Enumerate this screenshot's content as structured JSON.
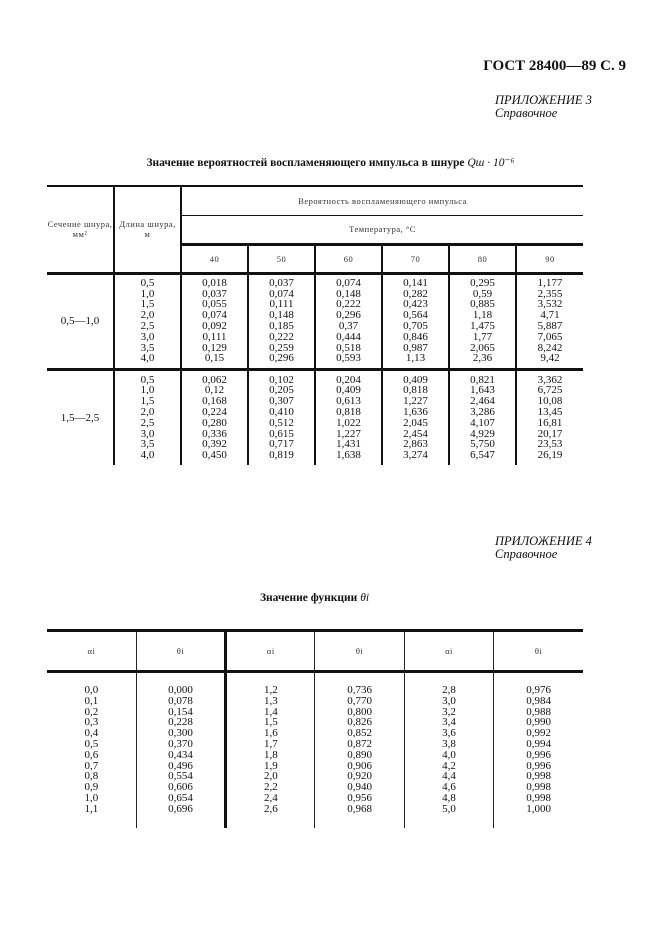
{
  "header": {
    "standard": "ГОСТ 28400—89 С. 9"
  },
  "appendix3": {
    "label": "ПРИЛОЖЕНИЕ 3",
    "type": "Справочное"
  },
  "table1": {
    "title": "Значение вероятностей воспламеняющего импульса в шнуре",
    "title_symbol": "Qш · 10⁻⁶",
    "col_section": "Сечение шнура, мм²",
    "col_length": "Длина шнура, м",
    "col_probability": "Вероятность воспламеняющего импульса",
    "col_temperature": "Температура, °С",
    "temperatures": [
      "40",
      "50",
      "60",
      "70",
      "80",
      "90"
    ],
    "groups": [
      {
        "section": "0,5—1,0",
        "lengths": [
          "0,5",
          "1,0",
          "1,5",
          "2,0",
          "2,5",
          "3,0",
          "3,5",
          "4,0"
        ],
        "columns": [
          [
            "0,018",
            "0,037",
            "0,055",
            "0,074",
            "0,092",
            "0,111",
            "0,129",
            "0,15"
          ],
          [
            "0,037",
            "0,074",
            "0,111",
            "0,148",
            "0,185",
            "0,222",
            "0,259",
            "0,296"
          ],
          [
            "0,074",
            "0,148",
            "0,222",
            "0,296",
            "0,37",
            "0,444",
            "0,518",
            "0,593"
          ],
          [
            "0,141",
            "0,282",
            "0,423",
            "0,564",
            "0,705",
            "0,846",
            "0,987",
            "1,13"
          ],
          [
            "0,295",
            "0,59",
            "0,885",
            "1,18",
            "1,475",
            "1,77",
            "2,065",
            "2,36"
          ],
          [
            "1,177",
            "2,355",
            "3,532",
            "4,71",
            "5,887",
            "7,065",
            "8,242",
            "9,42"
          ]
        ]
      },
      {
        "section": "1,5—2,5",
        "lengths": [
          "0,5",
          "1,0",
          "1,5",
          "2,0",
          "2,5",
          "3,0",
          "3,5",
          "4,0"
        ],
        "columns": [
          [
            "0,062",
            "0,12",
            "0,168",
            "0,224",
            "0,280",
            "0,336",
            "0,392",
            "0,450"
          ],
          [
            "0,102",
            "0,205",
            "0,307",
            "0,410",
            "0,512",
            "0,615",
            "0,717",
            "0,819"
          ],
          [
            "0,204",
            "0,409",
            "0,613",
            "0,818",
            "1,022",
            "1,227",
            "1,431",
            "1,638"
          ],
          [
            "0,409",
            "0,818",
            "1,227",
            "1,636",
            "2,045",
            "2,454",
            "2,863",
            "3,274"
          ],
          [
            "0,821",
            "1,643",
            "2,464",
            "3,286",
            "4,107",
            "4,929",
            "5,750",
            "6,547"
          ],
          [
            "3,362",
            "6,725",
            "10,08",
            "13,45",
            "16,81",
            "20,17",
            "23,53",
            "26,19"
          ]
        ]
      }
    ]
  },
  "appendix4": {
    "label": "ПРИЛОЖЕНИЕ 4",
    "type": "Справочное"
  },
  "table2": {
    "title": "Значение функции",
    "title_symbol": "θi",
    "headers": [
      "αi",
      "θi",
      "αi",
      "θi",
      "αi",
      "θi"
    ],
    "columns": [
      [
        "0,0",
        "0,1",
        "0,2",
        "0,3",
        "0,4",
        "0,5",
        "0,6",
        "0,7",
        "0,8",
        "0,9",
        "1,0",
        "1,1"
      ],
      [
        "0,000",
        "0,078",
        "0,154",
        "0,228",
        "0,300",
        "0,370",
        "0,434",
        "0,496",
        "0,554",
        "0,606",
        "0,654",
        "0,696"
      ],
      [
        "1,2",
        "1,3",
        "1,4",
        "1,5",
        "1,6",
        "1,7",
        "1,8",
        "1,9",
        "2,0",
        "2,2",
        "2,4",
        "2,6"
      ],
      [
        "0,736",
        "0,770",
        "0,800",
        "0,826",
        "0,852",
        "0,872",
        "0,890",
        "0,906",
        "0,920",
        "0,940",
        "0,956",
        "0,968"
      ],
      [
        "2,8",
        "3,0",
        "3,2",
        "3,4",
        "3,6",
        "3,8",
        "4,0",
        "4,2",
        "4,4",
        "4,6",
        "4,8",
        "5,0"
      ],
      [
        "0,976",
        "0,984",
        "0,988",
        "0,990",
        "0,992",
        "0,994",
        "0,996",
        "0,996",
        "0,998",
        "0,998",
        "0,998",
        "1,000"
      ]
    ]
  }
}
